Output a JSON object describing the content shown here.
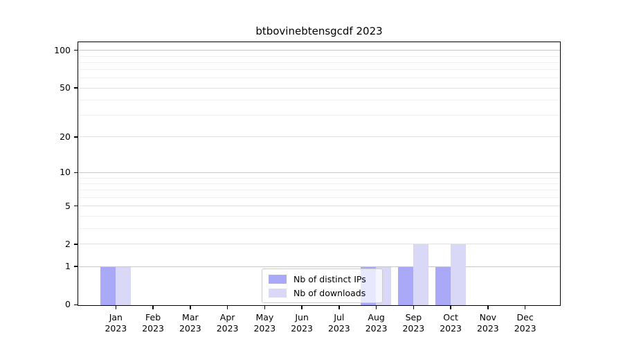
{
  "chart_data": {
    "type": "bar",
    "title": "btbovinebtensgcdf 2023",
    "categories": [
      {
        "month": "Jan",
        "year": "2023"
      },
      {
        "month": "Feb",
        "year": "2023"
      },
      {
        "month": "Mar",
        "year": "2023"
      },
      {
        "month": "Apr",
        "year": "2023"
      },
      {
        "month": "May",
        "year": "2023"
      },
      {
        "month": "Jun",
        "year": "2023"
      },
      {
        "month": "Jul",
        "year": "2023"
      },
      {
        "month": "Aug",
        "year": "2023"
      },
      {
        "month": "Sep",
        "year": "2023"
      },
      {
        "month": "Oct",
        "year": "2023"
      },
      {
        "month": "Nov",
        "year": "2023"
      },
      {
        "month": "Dec",
        "year": "2023"
      }
    ],
    "series": [
      {
        "name": "Nb of distinct IPs",
        "color": "#a9a9f7",
        "values": [
          1,
          0,
          0,
          0,
          0,
          0,
          0,
          1,
          1,
          1,
          0,
          0
        ]
      },
      {
        "name": "Nb of downloads",
        "color": "#d9d9f7",
        "values": [
          1,
          0,
          0,
          0,
          0,
          0,
          0,
          1,
          2,
          2,
          0,
          0
        ]
      }
    ],
    "xlabel": "",
    "ylabel": "",
    "yscale": "log1p",
    "ylim": [
      0,
      115
    ],
    "y_major_ticks": [
      100,
      50,
      20,
      10,
      5,
      2,
      1,
      0
    ],
    "y_gridline_values": [
      1,
      2,
      5,
      10,
      20,
      50,
      100
    ],
    "y_decade_gridlines": [
      1,
      10,
      100
    ],
    "y_minor_gridlines": [
      3,
      4,
      6,
      7,
      8,
      9,
      30,
      40,
      60,
      70,
      80,
      90
    ],
    "grid": "on",
    "legend_position": "lower center"
  }
}
